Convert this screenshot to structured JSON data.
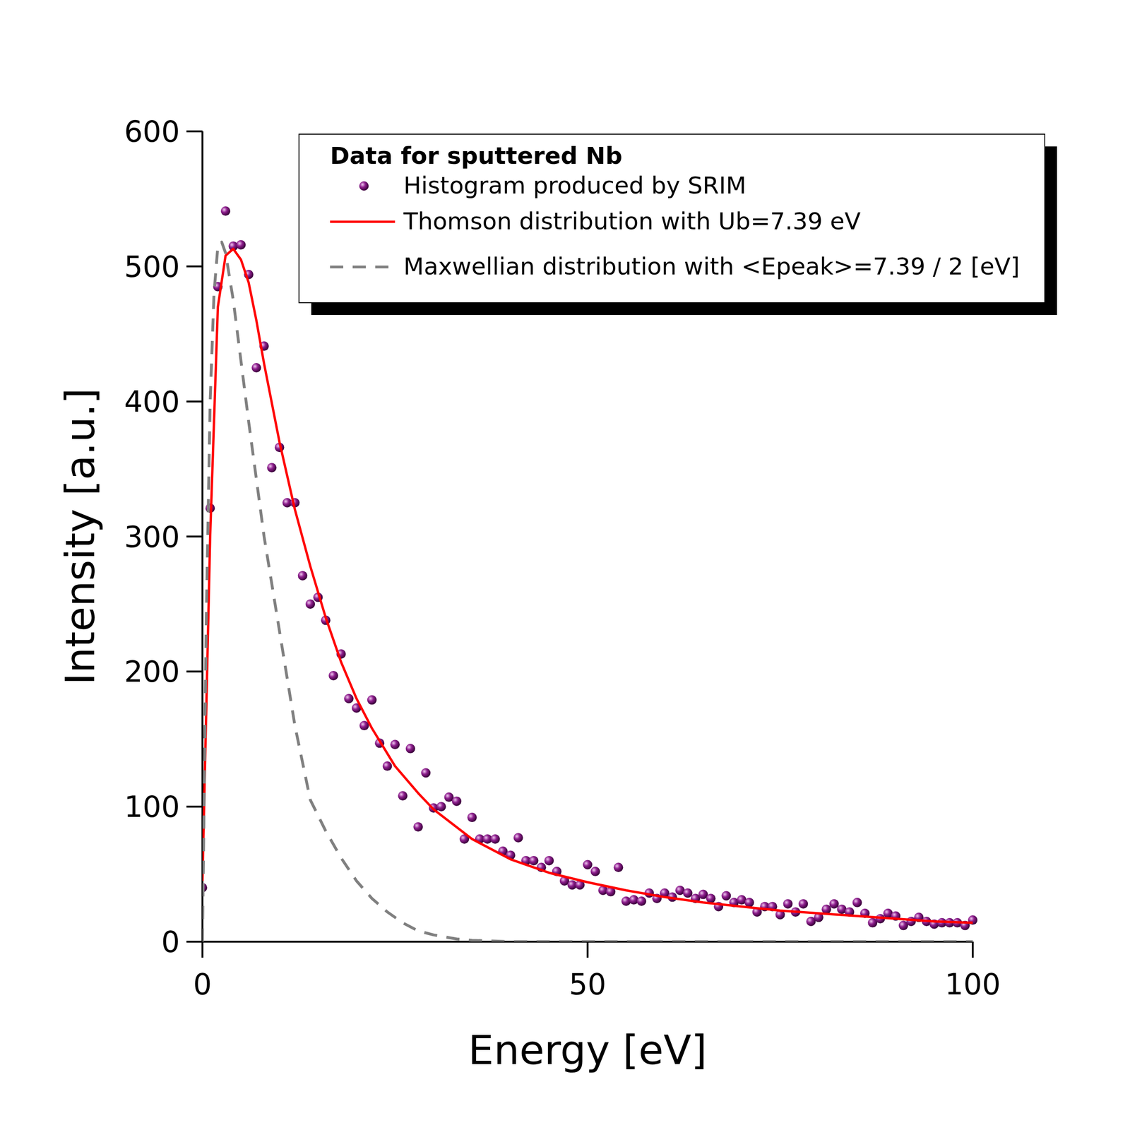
{
  "chart_data": {
    "type": "scatter",
    "x_label": "Energy [eV]",
    "y_label": "Intensity [a.u.]",
    "legend_title": "Data for sputtered Nb",
    "legend": "upper right",
    "xlim": [
      0,
      100
    ],
    "xticks": [
      0,
      50,
      100
    ],
    "ylim": [
      0,
      600
    ],
    "yticks": [
      0,
      100,
      200,
      300,
      400,
      500,
      600
    ],
    "series": [
      {
        "name": "Histogram produced by SRIM",
        "type": "scatter",
        "marker": "circle",
        "color": "#8e1f8e",
        "x": [
          0,
          1,
          2,
          3,
          4,
          5,
          6,
          7,
          8,
          9,
          10,
          11,
          12,
          13,
          14,
          15,
          16,
          17,
          18,
          19,
          20,
          21,
          22,
          23,
          24,
          25,
          26,
          27,
          28,
          29,
          30,
          31,
          32,
          33,
          34,
          35,
          36,
          37,
          38,
          39,
          40,
          41,
          42,
          43,
          44,
          45,
          46,
          47,
          48,
          49,
          50,
          51,
          52,
          53,
          54,
          55,
          56,
          57,
          58,
          59,
          60,
          61,
          62,
          63,
          64,
          65,
          66,
          67,
          68,
          69,
          70,
          71,
          72,
          73,
          74,
          75,
          76,
          77,
          78,
          79,
          80,
          81,
          82,
          83,
          84,
          85,
          86,
          87,
          88,
          89,
          90,
          91,
          92,
          93,
          94,
          95,
          96,
          97,
          98,
          99,
          100
        ],
        "values": [
          40,
          321,
          485,
          541,
          515,
          516,
          494,
          425,
          441,
          351,
          366,
          325,
          325,
          271,
          250,
          255,
          238,
          197,
          213,
          180,
          173,
          160,
          179,
          147,
          130,
          146,
          108,
          143,
          85,
          125,
          99,
          100,
          107,
          104,
          76,
          92,
          76,
          76,
          76,
          67,
          64,
          77,
          60,
          60,
          55,
          60,
          52,
          45,
          42,
          42,
          57,
          52,
          38,
          37,
          55,
          30,
          31,
          30,
          36,
          32,
          36,
          33,
          38,
          36,
          32,
          35,
          32,
          26,
          34,
          29,
          31,
          29,
          22,
          26,
          26,
          20,
          28,
          22,
          28,
          15,
          18,
          24,
          28,
          24,
          22,
          29,
          21,
          14,
          17,
          21,
          19,
          12,
          15,
          18,
          15,
          13,
          14,
          14,
          14,
          12,
          16
        ]
      },
      {
        "name": "Thomson distribution with Ub=7.39 eV",
        "type": "line",
        "line_style": "solid",
        "color": "#ff0000",
        "x": [
          0,
          1,
          2,
          3,
          4,
          5,
          6,
          7,
          8,
          10,
          12,
          14,
          16,
          18,
          20,
          22,
          25,
          28,
          30,
          35,
          40,
          45,
          50,
          55,
          60,
          65,
          70,
          75,
          80,
          85,
          90,
          95,
          100
        ],
        "values": [
          45,
          300,
          470,
          508,
          513,
          505,
          488,
          460,
          428,
          370,
          320,
          278,
          240,
          207,
          180,
          158,
          130,
          110,
          98,
          76,
          61,
          51,
          44,
          38,
          33,
          29,
          26,
          23,
          21,
          19,
          17,
          15,
          14
        ]
      },
      {
        "name": "Maxwellian distribution with <Epeak>=7.39 / 2 [eV]",
        "type": "line",
        "line_style": "dashed",
        "color": "#808080",
        "x": [
          0,
          0.5,
          1,
          1.5,
          2,
          2.5,
          3,
          4,
          5,
          6,
          8,
          10,
          12,
          14,
          16,
          18,
          20,
          22,
          24,
          26,
          28,
          30,
          33,
          35,
          40,
          50,
          60,
          70,
          80,
          90,
          100
        ],
        "values": [
          0,
          240,
          400,
          480,
          515,
          518,
          510,
          475,
          430,
          385,
          300,
          230,
          160,
          105,
          82,
          62,
          45,
          32,
          22,
          14,
          8,
          5,
          2,
          1,
          0,
          0,
          0,
          0,
          0,
          0,
          0
        ]
      }
    ]
  }
}
